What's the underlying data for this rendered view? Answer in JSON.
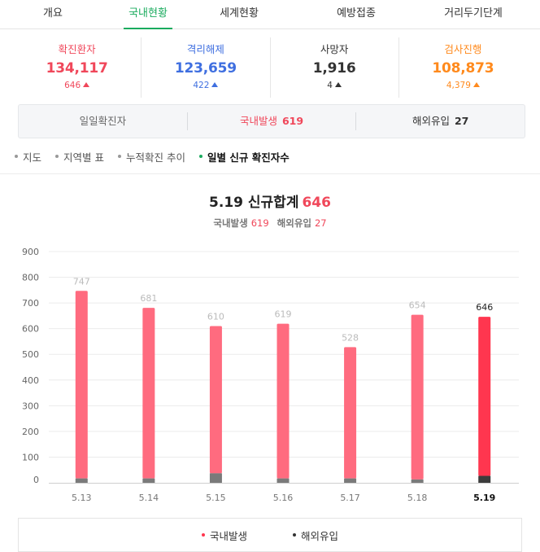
{
  "tabs": [
    {
      "label": "개요",
      "active": false
    },
    {
      "label": "국내현황",
      "active": true
    },
    {
      "label": "세계현황",
      "active": false
    },
    {
      "label": "예방접종",
      "active": false
    },
    {
      "label": "거리두기단계",
      "active": false
    }
  ],
  "stats": [
    {
      "label": "확진환자",
      "value": "134,117",
      "delta": "646",
      "color": "#f0475a"
    },
    {
      "label": "격리해제",
      "value": "123,659",
      "delta": "422",
      "color": "#3f6fe0"
    },
    {
      "label": "사망자",
      "value": "1,916",
      "delta": "4",
      "color": "#333333"
    },
    {
      "label": "검사진행",
      "value": "108,873",
      "delta": "4,379",
      "color": "#ff8a1d"
    }
  ],
  "daily": {
    "label": "일일확진자",
    "domestic_label": "국내발생",
    "domestic_value": "619",
    "overseas_label": "해외유입",
    "overseas_value": "27"
  },
  "submenu": [
    {
      "label": "지도",
      "active": false
    },
    {
      "label": "지역별 표",
      "active": false
    },
    {
      "label": "누적확진 추이",
      "active": false
    },
    {
      "label": "일별 신규 확진자수",
      "active": true
    }
  ],
  "chart_header": {
    "title": "5.19 신규합계",
    "total": "646",
    "domestic_label": "국내발생",
    "domestic_value": "619",
    "overseas_label": "해외유입",
    "overseas_value": "27"
  },
  "legend": {
    "domestic": "국내발생",
    "overseas": "해외유입"
  },
  "colors": {
    "accent": "#1aab5e",
    "domestic_bar": "#ff6b7f",
    "domestic_bar_today": "#ff364f",
    "overseas_bar": "#7a7a7a",
    "overseas_bar_today": "#3c3c3c"
  },
  "chart_data": {
    "type": "bar",
    "stacked": true,
    "categories": [
      "5.13",
      "5.14",
      "5.15",
      "5.16",
      "5.17",
      "5.18",
      "5.19"
    ],
    "totals": [
      747,
      681,
      610,
      619,
      528,
      654,
      646
    ],
    "series": [
      {
        "name": "국내발생",
        "values": [
          730,
          664,
          573,
          602,
          511,
          641,
          619
        ]
      },
      {
        "name": "해외유입",
        "values": [
          17,
          17,
          37,
          17,
          17,
          13,
          27
        ]
      }
    ],
    "y_ticks": [
      0,
      100,
      200,
      300,
      400,
      500,
      600,
      700,
      800,
      900
    ],
    "ylim": [
      0,
      900
    ],
    "highlight_index": 6,
    "legend_position": "bottom",
    "grid": true
  }
}
